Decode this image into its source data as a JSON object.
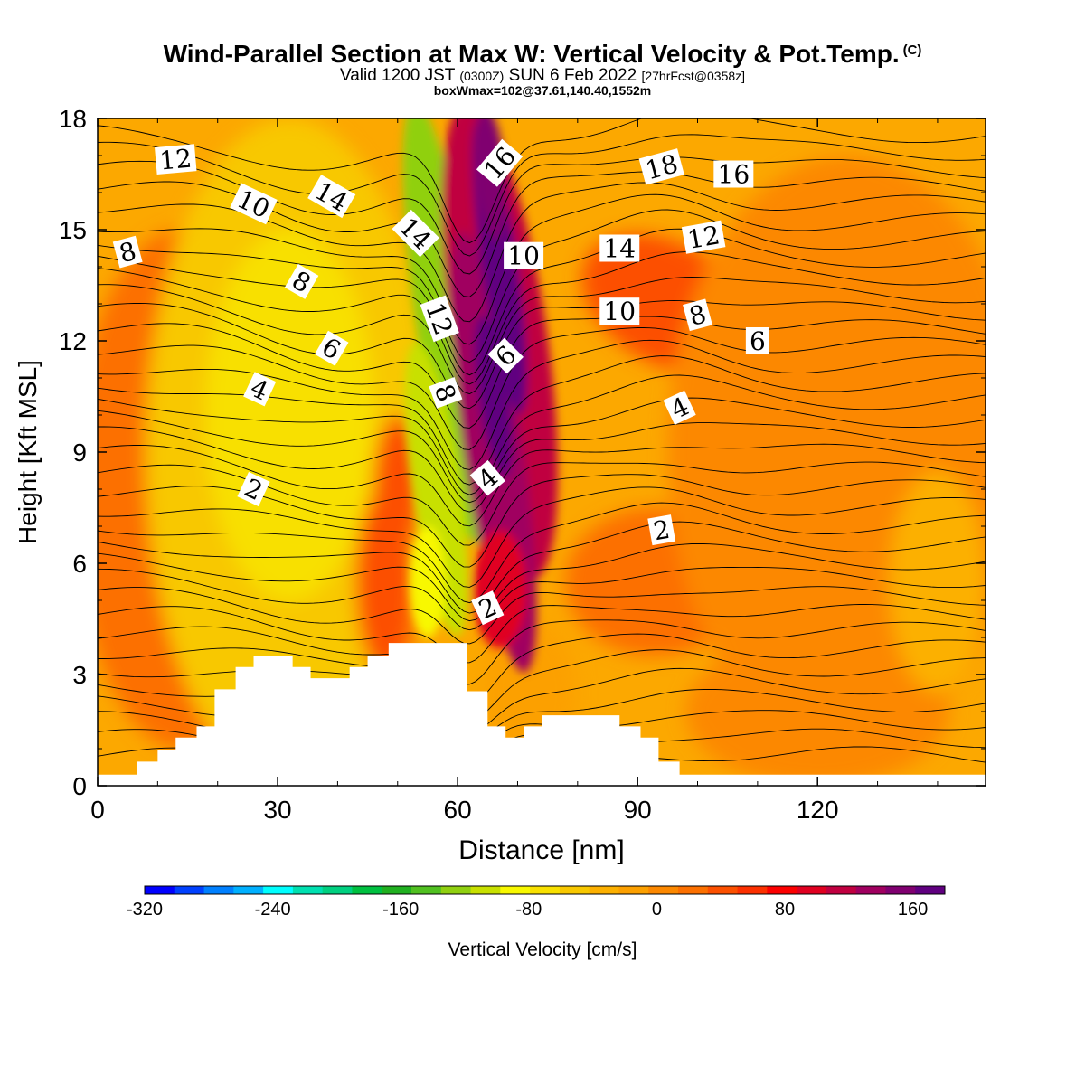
{
  "title": {
    "main": "Wind-Parallel Section at Max W: Vertical Velocity & Pot.Temp.",
    "copyright": "(C)",
    "valid_prefix": "Valid 1200 JST",
    "valid_utc": "(0300Z)",
    "valid_date": "SUN 6 Feb 2022",
    "forecast": "[27hrFcst@0358z]",
    "box_info": "boxWmax=102@37.61,140.40,1552m"
  },
  "colors": {
    "background_field": "#fca800",
    "terrain": "#ffffff",
    "contour": "#000000",
    "scale": [
      "#0000ff",
      "#0040ff",
      "#0080ff",
      "#00b0ff",
      "#00ffff",
      "#00e0b0",
      "#00d080",
      "#00c040",
      "#20b020",
      "#50c020",
      "#90d010",
      "#c8e000",
      "#f8f800",
      "#f8e000",
      "#f8c800",
      "#fcb000",
      "#fca000",
      "#fc8800",
      "#fc7000",
      "#fc5000",
      "#fc3000",
      "#fc0000",
      "#e00020",
      "#c00040",
      "#a00060",
      "#800070",
      "#600080"
    ]
  },
  "colorbar": {
    "label": "Vertical Velocity [cm/s]",
    "min": -320,
    "max": 180,
    "ticks": [
      "-320",
      "-240",
      "-160",
      "-80",
      "0",
      "80",
      "160"
    ],
    "tick_values": [
      -320,
      -240,
      -160,
      -80,
      0,
      80,
      160
    ]
  },
  "chart_data": {
    "type": "heatmap",
    "title": "Wind-Parallel Section at Max W: Vertical Velocity & Pot.Temp.",
    "xlabel": "Distance [nm]",
    "ylabel": "Height [Kft MSL]",
    "xlim": [
      0,
      148
    ],
    "ylim": [
      0,
      18
    ],
    "xticks": [
      "0",
      "30",
      "60",
      "90",
      "120"
    ],
    "xtick_values": [
      0,
      30,
      60,
      90,
      120
    ],
    "yticks": [
      "0",
      "3",
      "6",
      "9",
      "12",
      "15",
      "18"
    ],
    "ytick_values": [
      0,
      3,
      6,
      9,
      12,
      15,
      18
    ],
    "grid": false,
    "vertical_velocity_features": [
      {
        "kind": "updraft",
        "x": 66,
        "y": 10.5,
        "peak": 170
      },
      {
        "kind": "updraft",
        "x": 68,
        "y": 5.5,
        "peak": 90
      },
      {
        "kind": "downdraft",
        "x": 58,
        "y": 12,
        "peak": -130
      },
      {
        "kind": "downdraft",
        "x": 57,
        "y": 8,
        "peak": -110
      },
      {
        "kind": "sinking",
        "x": 32,
        "y": 9,
        "peak": -70
      },
      {
        "kind": "rising",
        "x": 20,
        "y": 7,
        "peak": 40
      },
      {
        "kind": "rising",
        "x": 48,
        "y": 5,
        "peak": 50
      },
      {
        "kind": "rising",
        "x": 95,
        "y": 13,
        "peak": 30
      }
    ],
    "terrain_profile": [
      [
        0,
        0.3
      ],
      [
        6.5,
        0.3
      ],
      [
        6.5,
        0.65
      ],
      [
        10,
        0.65
      ],
      [
        10,
        0.95
      ],
      [
        13,
        0.95
      ],
      [
        13,
        1.3
      ],
      [
        16.5,
        1.3
      ],
      [
        16.5,
        1.6
      ],
      [
        19.5,
        1.6
      ],
      [
        19.5,
        2.6
      ],
      [
        23,
        2.6
      ],
      [
        23,
        3.2
      ],
      [
        26,
        3.2
      ],
      [
        26,
        3.5
      ],
      [
        32.5,
        3.5
      ],
      [
        32.5,
        3.2
      ],
      [
        35.5,
        3.2
      ],
      [
        35.5,
        2.9
      ],
      [
        42,
        2.9
      ],
      [
        42,
        3.2
      ],
      [
        45,
        3.2
      ],
      [
        45,
        3.5
      ],
      [
        48.5,
        3.5
      ],
      [
        48.5,
        3.85
      ],
      [
        61.5,
        3.85
      ],
      [
        61.5,
        2.55
      ],
      [
        65,
        2.55
      ],
      [
        65,
        1.6
      ],
      [
        68,
        1.6
      ],
      [
        68,
        1.3
      ],
      [
        71,
        1.3
      ],
      [
        71,
        1.6
      ],
      [
        74,
        1.6
      ],
      [
        74,
        1.9
      ],
      [
        87,
        1.9
      ],
      [
        87,
        1.6
      ],
      [
        90.5,
        1.6
      ],
      [
        90.5,
        1.3
      ],
      [
        93.5,
        1.3
      ],
      [
        93.5,
        0.65
      ],
      [
        97,
        0.65
      ],
      [
        97,
        0.3
      ],
      [
        148,
        0.3
      ]
    ],
    "theta_contour_labels": [
      {
        "text": "12",
        "x": 13,
        "y": 16.9,
        "rot": -5
      },
      {
        "text": "10",
        "x": 26,
        "y": 15.7,
        "rot": 25
      },
      {
        "text": "14",
        "x": 39,
        "y": 15.9,
        "rot": 30
      },
      {
        "text": "8",
        "x": 5,
        "y": 14.4,
        "rot": -15
      },
      {
        "text": "14",
        "x": 53,
        "y": 14.9,
        "rot": 45
      },
      {
        "text": "16",
        "x": 67,
        "y": 16.8,
        "rot": -50
      },
      {
        "text": "18",
        "x": 94,
        "y": 16.7,
        "rot": -15
      },
      {
        "text": "16",
        "x": 106,
        "y": 16.5,
        "rot": 0
      },
      {
        "text": "10",
        "x": 71,
        "y": 14.3,
        "rot": 0
      },
      {
        "text": "14",
        "x": 87,
        "y": 14.5,
        "rot": 0
      },
      {
        "text": "12",
        "x": 101,
        "y": 14.8,
        "rot": -10
      },
      {
        "text": "8",
        "x": 34,
        "y": 13.6,
        "rot": 30
      },
      {
        "text": "12",
        "x": 57,
        "y": 12.6,
        "rot": 70
      },
      {
        "text": "10",
        "x": 87,
        "y": 12.8,
        "rot": 0
      },
      {
        "text": "8",
        "x": 100,
        "y": 12.7,
        "rot": -15
      },
      {
        "text": "6",
        "x": 110,
        "y": 12.0,
        "rot": 0
      },
      {
        "text": "6",
        "x": 39,
        "y": 11.8,
        "rot": 30
      },
      {
        "text": "6",
        "x": 68,
        "y": 11.6,
        "rot": -45
      },
      {
        "text": "4",
        "x": 27,
        "y": 10.7,
        "rot": 25
      },
      {
        "text": "8",
        "x": 58,
        "y": 10.6,
        "rot": 70
      },
      {
        "text": "4",
        "x": 97,
        "y": 10.2,
        "rot": -25
      },
      {
        "text": "4",
        "x": 65,
        "y": 8.3,
        "rot": -40
      },
      {
        "text": "2",
        "x": 26,
        "y": 8.0,
        "rot": 25
      },
      {
        "text": "2",
        "x": 94,
        "y": 6.9,
        "rot": -10
      },
      {
        "text": "2",
        "x": 65,
        "y": 4.8,
        "rot": -25
      }
    ]
  }
}
